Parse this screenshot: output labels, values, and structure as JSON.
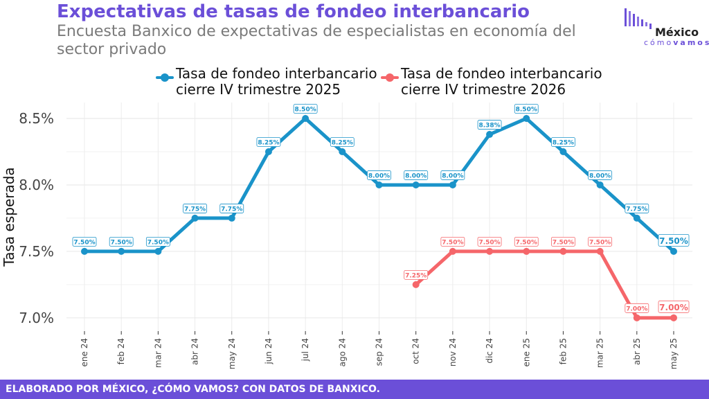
{
  "header": {
    "title": "Expectativas de tasas de fondeo interbancario",
    "subtitle": "Encuesta Banxico de expectativas de especialistas en economía del sector privado"
  },
  "logo": {
    "main": "México",
    "sub_light": "cómo",
    "sub_bold": "vamos"
  },
  "footer": {
    "text": "ELABORADO POR MÉXICO, ¿CÓMO VAMOS? CON DATOS DE BANXICO."
  },
  "chart_data": {
    "type": "line",
    "ylabel": "Tasa esperada",
    "xlabel": "",
    "ylim": [
      6.9,
      8.62
    ],
    "yticks": [
      "7.0%",
      "7.5%",
      "8.0%",
      "8.5%"
    ],
    "ytick_values": [
      7.0,
      7.5,
      8.0,
      8.5
    ],
    "categories": [
      "ene 24",
      "feb 24",
      "mar 24",
      "abr 24",
      "may 24",
      "jun 24",
      "jul 24",
      "ago 24",
      "sep 24",
      "oct 24",
      "nov 24",
      "dic 24",
      "ene 25",
      "feb 25",
      "mar 25",
      "abr 25",
      "may 25"
    ],
    "grid": true,
    "legend_position": "top",
    "series": [
      {
        "name": "Tasa de fondeo interbancario\ncierre IV trimestre 2025",
        "color": "#1a93c9",
        "values": [
          7.5,
          7.5,
          7.5,
          7.75,
          7.75,
          8.25,
          8.5,
          8.25,
          8.0,
          8.0,
          8.0,
          8.38,
          8.5,
          8.25,
          8.0,
          7.75,
          7.5
        ],
        "labels": [
          "7.50%",
          "7.50%",
          "7.50%",
          "7.75%",
          "7.75%",
          "8.25%",
          "8.50%",
          "8.25%",
          "8.00%",
          "8.00%",
          "8.00%",
          "8.38%",
          "8.50%",
          "8.25%",
          "8.00%",
          "7.75%",
          "7.50%"
        ]
      },
      {
        "name": "Tasa de fondeo interbancario\ncierre IV trimestre 2026",
        "color": "#f5666a",
        "values": [
          null,
          null,
          null,
          null,
          null,
          null,
          null,
          null,
          null,
          7.25,
          7.5,
          7.5,
          7.5,
          7.5,
          7.5,
          7.0,
          7.0
        ],
        "labels": [
          null,
          null,
          null,
          null,
          null,
          null,
          null,
          null,
          null,
          "7.25%",
          "7.50%",
          "7.50%",
          "7.50%",
          "7.50%",
          "7.50%",
          "7.00%",
          "7.00%"
        ]
      }
    ]
  }
}
